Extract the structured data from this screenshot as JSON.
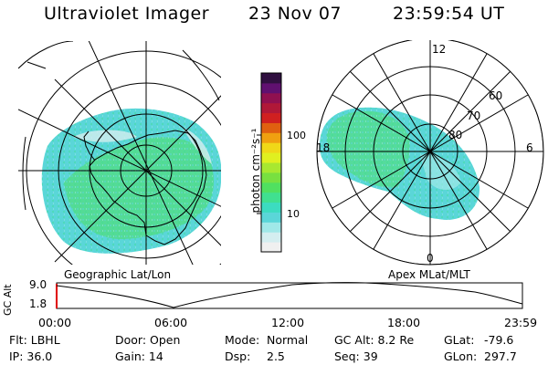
{
  "header": {
    "title": "Ultraviolet Imager",
    "date": "23 Nov 07",
    "time": "23:59:54 UT"
  },
  "left_map": {
    "label": "Geographic Lat/Lon"
  },
  "right_map": {
    "label": "Apex MLat/MLT",
    "mlt_labels": {
      "top": "12",
      "right": "6",
      "bottom": "0",
      "left": "18"
    },
    "lat_labels": [
      "60",
      "70",
      "80"
    ]
  },
  "colorbar": {
    "label": "photon cm⁻²s⁻¹",
    "ticks": [
      "100",
      "10"
    ],
    "colors": [
      "#f0f0f0",
      "#d4eef0",
      "#a0e8e8",
      "#5ad6d8",
      "#3cdcc0",
      "#40e090",
      "#50e060",
      "#78e040",
      "#a8e830",
      "#e0f020",
      "#f0d818",
      "#f0a010",
      "#e06010",
      "#d02020",
      "#b01838",
      "#901050",
      "#601070",
      "#301040"
    ]
  },
  "altitude_plot": {
    "ylabel": "GC Alt",
    "yticks": [
      "9.0",
      "1.8"
    ],
    "xticks": [
      "00:00",
      "06:00",
      "12:00",
      "18:00",
      "23:59"
    ]
  },
  "info": {
    "filter": "Flt: LBHL",
    "ip": "IP: 36.0",
    "door": "Door: Open",
    "gain": "Gain: 14",
    "mode_label": "Mode:",
    "mode_value": "Normal",
    "dsp_label": "Dsp:",
    "dsp_value": "2.5",
    "gc_alt": "GC Alt: 8.2 Re",
    "seq": "Seq: 39",
    "glat_label": "GLat:",
    "glat_value": "-79.6",
    "glon_label": "GLon:",
    "glon_value": "297.7"
  }
}
